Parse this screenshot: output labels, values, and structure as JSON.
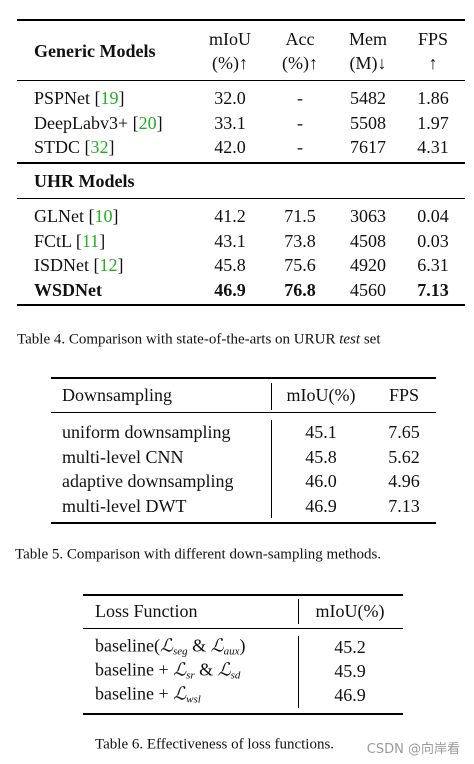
{
  "table4": {
    "header": {
      "label": "Generic Models",
      "columns": [
        [
          "mIoU",
          "(%)↑"
        ],
        [
          "Acc",
          "(%)↑"
        ],
        [
          "Mem",
          "(M)↓"
        ],
        [
          "FPS",
          "↑"
        ]
      ]
    },
    "groups": [
      {
        "rows": [
          {
            "name": {
              "text": "PSPNet [",
              "cite": "19",
              "close": "]"
            },
            "cells": [
              "32.0",
              "-",
              "5482",
              "1.86"
            ]
          },
          {
            "name": {
              "text": "DeepLabv3+ [",
              "cite": "20",
              "close": "]"
            },
            "cells": [
              "33.1",
              "-",
              "5508",
              "1.97"
            ]
          },
          {
            "name": {
              "text": "STDC [",
              "cite": "32",
              "close": "]"
            },
            "cells": [
              "42.0",
              "-",
              "7617",
              "4.31"
            ]
          }
        ]
      },
      {
        "title": "UHR Models",
        "rows": [
          {
            "name": {
              "text": "GLNet [",
              "cite": "10",
              "close": "]"
            },
            "cells": [
              "41.2",
              "71.5",
              "3063",
              "0.04"
            ]
          },
          {
            "name": {
              "text": "FCtL [",
              "cite": "11",
              "close": "]"
            },
            "cells": [
              "43.1",
              "73.8",
              "4508",
              "0.03"
            ]
          },
          {
            "name": {
              "text": "ISDNet [",
              "cite": "12",
              "close": "]"
            },
            "cells": [
              "45.8",
              "75.6",
              "4920",
              "6.31"
            ]
          },
          {
            "name": {
              "text": "WSDNet"
            },
            "cells": [
              "46.9",
              "76.8",
              "4560",
              "7.13"
            ],
            "bold": true,
            "bold_cells": [
              0,
              1,
              3
            ]
          }
        ]
      }
    ],
    "caption": {
      "before": "Table 4. Comparison with state-of-the-arts on URUR ",
      "italic": "test",
      "after": " set"
    }
  },
  "table5": {
    "header": [
      "Downsampling",
      "mIoU(%)",
      "FPS"
    ],
    "rows": [
      [
        "uniform downsampling",
        "45.1",
        "7.65"
      ],
      [
        "multi-level CNN",
        "45.8",
        "5.62"
      ],
      [
        "adaptive downsampling",
        "46.0",
        "4.96"
      ],
      [
        "multi-level DWT",
        "46.9",
        "7.13"
      ]
    ],
    "caption": "Table 5. Comparison with different down-sampling methods."
  },
  "table6": {
    "header": [
      "Loss Function",
      "mIoU(%)"
    ],
    "rows": [
      {
        "label": [
          {
            "t": "baseline("
          },
          {
            "t": "ℒ",
            "sub": "seg"
          },
          {
            "t": " & "
          },
          {
            "t": "ℒ",
            "sub": "aux"
          },
          {
            "t": ")"
          }
        ],
        "value": "45.2"
      },
      {
        "label": [
          {
            "t": "baseline + "
          },
          {
            "t": "ℒ",
            "sub": "sr"
          },
          {
            "t": " & "
          },
          {
            "t": "ℒ",
            "sub": "sd"
          }
        ],
        "value": "45.9"
      },
      {
        "label": [
          {
            "t": "baseline + "
          },
          {
            "t": "ℒ",
            "sub": "wsl"
          }
        ],
        "value": "46.9"
      }
    ],
    "caption": "Table 6. Effectiveness of loss functions.",
    "watermark": "CSDN @向岸看"
  }
}
